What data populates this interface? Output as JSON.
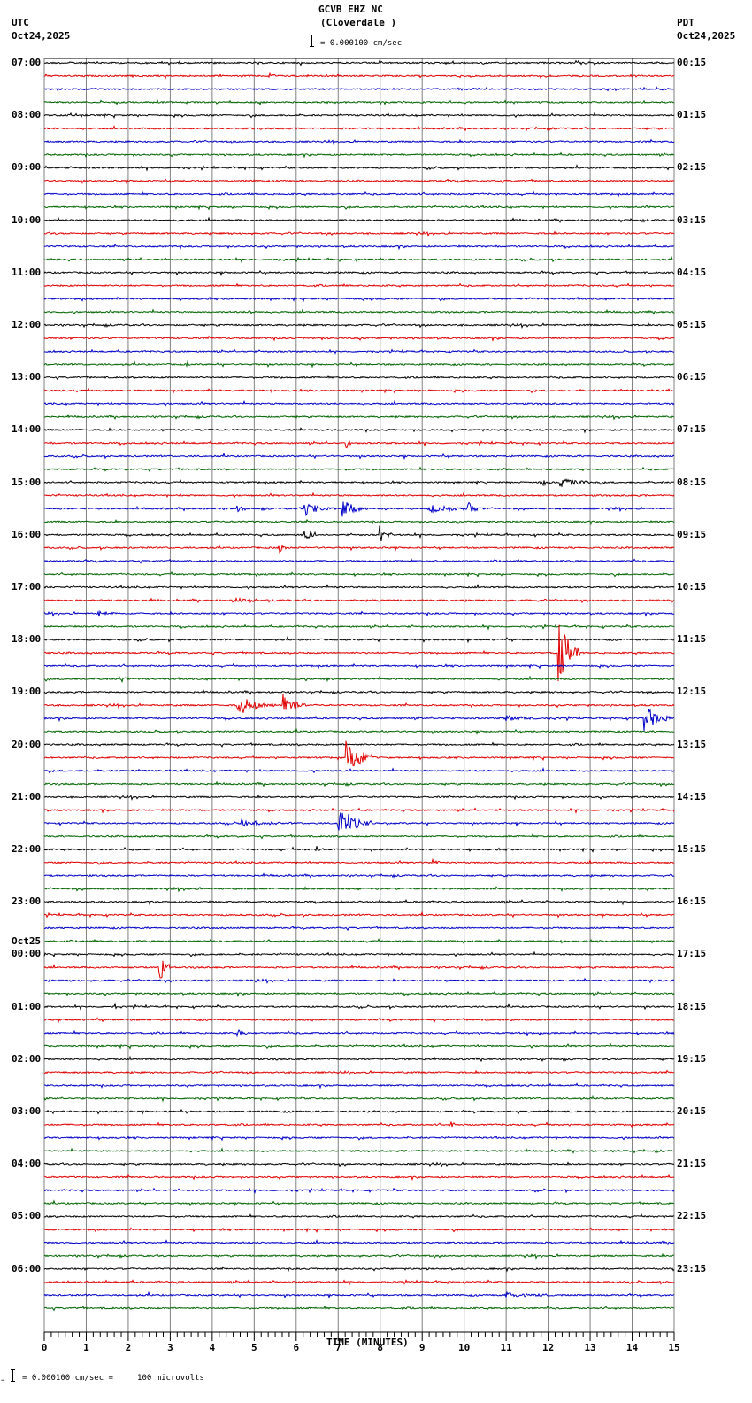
{
  "header": {
    "station": "GCVB EHZ NC",
    "location": "(Cloverdale )",
    "scale_text": "= 0.000100 cm/sec",
    "left_tz": "UTC",
    "left_date": "Oct24,2025",
    "right_tz": "PDT",
    "right_date": "Oct24,2025"
  },
  "footer": {
    "scale_text": "= 0.000100 cm/sec =     100 microvolts",
    "prefix": "→"
  },
  "colors": {
    "trace_cycle": [
      "#000000",
      "#e00000",
      "#0000c8",
      "#006400"
    ],
    "grid": "#808080",
    "frame": "#000000"
  },
  "chart_data": {
    "type": "line",
    "title": "GCVB EHZ NC (Cloverdale )",
    "subtitle": "= 0.000100 cm/sec",
    "xlabel": "TIME (MINUTES)",
    "ylabel": "",
    "xlim": [
      0,
      15
    ],
    "x_ticks": [
      0,
      1,
      2,
      3,
      4,
      5,
      6,
      7,
      8,
      9,
      10,
      11,
      12,
      13,
      14,
      15
    ],
    "minor_ticks_per_minute": 6,
    "grid": true,
    "traces_per_hour": 4,
    "trace_minutes": 15,
    "left_hour_labels": [
      "07:00",
      "08:00",
      "09:00",
      "10:00",
      "11:00",
      "12:00",
      "13:00",
      "14:00",
      "15:00",
      "16:00",
      "17:00",
      "18:00",
      "19:00",
      "20:00",
      "21:00",
      "22:00",
      "23:00",
      "00:00",
      "01:00",
      "02:00",
      "03:00",
      "04:00",
      "05:00",
      "06:00"
    ],
    "left_date_break": {
      "hour_index": 17,
      "label": "Oct25"
    },
    "right_hour_labels": [
      "00:15",
      "01:15",
      "02:15",
      "03:15",
      "04:15",
      "05:15",
      "06:15",
      "07:15",
      "08:15",
      "09:15",
      "10:15",
      "11:15",
      "12:15",
      "13:15",
      "14:15",
      "15:15",
      "16:15",
      "17:15",
      "18:15",
      "19:15",
      "20:15",
      "21:15",
      "22:15",
      "23:15"
    ],
    "events": [
      {
        "trace": 1,
        "minute": 5.35,
        "amp": 5,
        "dur": 0.15
      },
      {
        "trace": 3,
        "minute": 3.4,
        "amp": 4,
        "dur": 0.05
      },
      {
        "trace": 19,
        "minute": 4.9,
        "amp": 4,
        "dur": 0.05
      },
      {
        "trace": 23,
        "minute": 3.4,
        "amp": 3,
        "dur": 0.1
      },
      {
        "trace": 29,
        "minute": 7.2,
        "amp": 5,
        "dur": 0.1
      },
      {
        "trace": 32,
        "minute": 11.8,
        "amp": 7,
        "dur": 0.2
      },
      {
        "trace": 32,
        "minute": 12.3,
        "amp": 5,
        "dur": 0.9
      },
      {
        "trace": 34,
        "minute": 4.6,
        "amp": 4,
        "dur": 0.2
      },
      {
        "trace": 34,
        "minute": 6.2,
        "amp": 8,
        "dur": 0.8
      },
      {
        "trace": 34,
        "minute": 7.1,
        "amp": 10,
        "dur": 0.6
      },
      {
        "trace": 34,
        "minute": 9.2,
        "amp": 6,
        "dur": 1.0
      },
      {
        "trace": 34,
        "minute": 10.1,
        "amp": 9,
        "dur": 0.3
      },
      {
        "trace": 36,
        "minute": 6.2,
        "amp": 11,
        "dur": 0.3
      },
      {
        "trace": 36,
        "minute": 8.0,
        "amp": 12,
        "dur": 0.3
      },
      {
        "trace": 37,
        "minute": 5.6,
        "amp": 8,
        "dur": 0.2
      },
      {
        "trace": 41,
        "minute": 4.5,
        "amp": 3,
        "dur": 0.6
      },
      {
        "trace": 42,
        "minute": 1.3,
        "amp": 3,
        "dur": 0.4
      },
      {
        "trace": 45,
        "minute": 12.25,
        "amp": 40,
        "dur": 0.5
      },
      {
        "trace": 47,
        "minute": 1.8,
        "amp": 5,
        "dur": 0.25
      },
      {
        "trace": 47,
        "minute": 6.7,
        "amp": 4,
        "dur": 0.3
      },
      {
        "trace": 49,
        "minute": 4.6,
        "amp": 12,
        "dur": 0.9
      },
      {
        "trace": 49,
        "minute": 5.7,
        "amp": 14,
        "dur": 0.5
      },
      {
        "trace": 50,
        "minute": 11.0,
        "amp": 4,
        "dur": 1.0
      },
      {
        "trace": 50,
        "minute": 14.3,
        "amp": 14,
        "dur": 0.7
      },
      {
        "trace": 53,
        "minute": 7.2,
        "amp": 20,
        "dur": 0.7
      },
      {
        "trace": 58,
        "minute": 4.7,
        "amp": 5,
        "dur": 1.0
      },
      {
        "trace": 58,
        "minute": 7.0,
        "amp": 16,
        "dur": 0.8
      },
      {
        "trace": 60,
        "minute": 6.5,
        "amp": 4,
        "dur": 0.3
      },
      {
        "trace": 61,
        "minute": 9.25,
        "amp": 5,
        "dur": 0.15
      },
      {
        "trace": 69,
        "minute": 2.75,
        "amp": 20,
        "dur": 0.25
      },
      {
        "trace": 72,
        "minute": 1.7,
        "amp": 4,
        "dur": 0.05
      },
      {
        "trace": 74,
        "minute": 4.6,
        "amp": 4,
        "dur": 0.4
      },
      {
        "trace": 74,
        "minute": 11.5,
        "amp": 5,
        "dur": 0.05
      },
      {
        "trace": 81,
        "minute": 9.7,
        "amp": 5,
        "dur": 0.1
      },
      {
        "trace": 94,
        "minute": 11.0,
        "amp": 3,
        "dur": 1.0
      }
    ]
  }
}
